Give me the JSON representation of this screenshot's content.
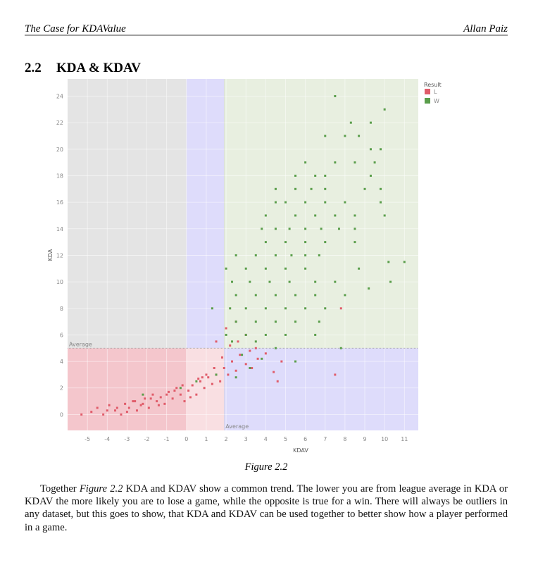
{
  "header": {
    "left": "The Case for KDAValue",
    "right": "Allan Paiz"
  },
  "section": {
    "number": "2.2",
    "title": "KDA & KDAV"
  },
  "chart_data": {
    "type": "scatter",
    "x_label": "KDAV",
    "y_label": "KDA",
    "legend_title": "Result",
    "legend_position": "outside-right",
    "xlim": [
      -6,
      11.7
    ],
    "ylim": [
      -1.2,
      25.3
    ],
    "xticks": [
      -5,
      -4,
      -3,
      -2,
      -1,
      0,
      1,
      2,
      3,
      4,
      5,
      6,
      7,
      8,
      9,
      10,
      11
    ],
    "yticks": [
      0,
      2,
      4,
      6,
      8,
      10,
      12,
      14,
      16,
      18,
      20,
      22,
      24
    ],
    "grid": true,
    "reference_lines": [
      {
        "axis": "y",
        "value": 5,
        "label": "Average"
      },
      {
        "axis": "x",
        "value": 1.9,
        "label": "Average"
      }
    ],
    "series": [
      {
        "name": "L",
        "color": "#e05c6a",
        "x": [
          -5.3,
          -4.8,
          -4.5,
          -4.2,
          -3.9,
          -3.6,
          -3.3,
          -3.1,
          -2.9,
          -2.7,
          -2.5,
          -2.3,
          -2.1,
          -1.9,
          -1.7,
          -1.5,
          -1.3,
          -1.1,
          -0.9,
          -0.7,
          -0.5,
          -0.3,
          -0.1,
          0.1,
          0.3,
          0.5,
          0.7,
          0.9,
          1.1,
          1.3,
          1.5,
          1.7,
          1.9,
          2.1,
          2.3,
          2.5,
          2.7,
          3,
          3.3,
          3.6,
          4,
          4.4,
          4.8,
          -4,
          -3.5,
          -3,
          -2.6,
          -2.2,
          -1.8,
          -1.4,
          -1,
          -0.6,
          -0.2,
          0.2,
          0.6,
          1,
          1.4,
          1.8,
          2.2,
          2.6,
          3,
          3.5,
          1.5,
          2,
          2.5,
          7.5,
          7.8,
          3.2,
          4.6,
          0.8
        ],
        "values": [
          0,
          0.2,
          0.5,
          0,
          0.7,
          0.3,
          0,
          0.8,
          0.5,
          1,
          0.3,
          0.7,
          1.2,
          0.5,
          1.5,
          1,
          1.3,
          0.8,
          1.7,
          1.2,
          2,
          1.5,
          1,
          1.8,
          2.2,
          1.5,
          2.5,
          2,
          2.8,
          2.3,
          3,
          2.5,
          3.5,
          3,
          4,
          3.3,
          4.5,
          3.8,
          3.5,
          4.2,
          4.6,
          3.2,
          4,
          0.3,
          0.5,
          0.2,
          1,
          0.8,
          1.2,
          0.7,
          1.5,
          1.8,
          2.2,
          1.3,
          2.7,
          3,
          3.5,
          4.3,
          5.2,
          5.5,
          6,
          5,
          5.5,
          6.5,
          7,
          3,
          8,
          4.8,
          2.5,
          2.8
        ]
      },
      {
        "name": "W",
        "color": "#5a9e4b",
        "x": [
          7.5,
          10,
          8.3,
          9.3,
          7,
          8,
          8.7,
          9.3,
          9.8,
          6,
          7.5,
          8.5,
          9.5,
          5.5,
          6.5,
          7,
          9.3,
          4.5,
          5.5,
          6.3,
          7,
          9,
          9.8,
          4.5,
          5,
          6,
          7,
          8,
          9.8,
          4,
          5.5,
          6.5,
          7.5,
          8.5,
          10,
          3.8,
          4.5,
          5.2,
          6,
          6.8,
          7.7,
          8.5,
          4,
          5,
          6,
          7,
          8.5,
          2.5,
          3.5,
          4.5,
          5.3,
          6,
          6.7,
          2,
          3,
          4,
          5,
          6,
          8.7,
          10.2,
          11,
          2.3,
          3.2,
          4.2,
          5.2,
          6.5,
          7.5,
          10.3,
          2.5,
          3.5,
          4.5,
          5.5,
          6.5,
          8,
          9.2,
          1.3,
          2.2,
          3,
          4,
          5,
          6,
          7,
          2.5,
          3.5,
          4.5,
          5.5,
          6.7,
          2,
          3,
          4,
          5,
          6.5,
          2.3,
          3.5,
          4.5,
          7.8,
          2.8,
          3.8,
          5.5,
          -2.2,
          -0.3,
          0.5,
          1.5,
          2.5,
          3.2
        ],
        "values": [
          24,
          23,
          22,
          22,
          21,
          21,
          21,
          20,
          20,
          19,
          19,
          19,
          19,
          18,
          18,
          18,
          18,
          17,
          17,
          17,
          17,
          17,
          17,
          16,
          16,
          16,
          16,
          16,
          16,
          15,
          15,
          15,
          15,
          15,
          15,
          14,
          14,
          14,
          14,
          14,
          14,
          14,
          13,
          13,
          13,
          13,
          13,
          12,
          12,
          12,
          12,
          12,
          12,
          11,
          11,
          11,
          11,
          11,
          11,
          11.5,
          11.5,
          10,
          10,
          10,
          10,
          10,
          10,
          10,
          9,
          9,
          9,
          9,
          9,
          9,
          9.5,
          8,
          8,
          8,
          8,
          8,
          8,
          8,
          7,
          7,
          7,
          7,
          7,
          6,
          6,
          6,
          6,
          6,
          5.5,
          5.5,
          5,
          5,
          4.5,
          4.2,
          4,
          1.5,
          2,
          2.5,
          3,
          2.8,
          3.5
        ]
      }
    ]
  },
  "caption": "Figure 2.2",
  "paragraph": [
    {
      "text": "Together "
    },
    {
      "text": "Figure 2.2",
      "italic": true
    },
    {
      "text": " KDA and KDAV show a common trend. The lower you are from league average in KDA or KDAV the more likely you are to lose a game, while the opposite is true for a win. There will always be outliers in any dataset, but this goes to show, that KDA and KDAV can be used together to better show how a player performed in a game."
    }
  ]
}
